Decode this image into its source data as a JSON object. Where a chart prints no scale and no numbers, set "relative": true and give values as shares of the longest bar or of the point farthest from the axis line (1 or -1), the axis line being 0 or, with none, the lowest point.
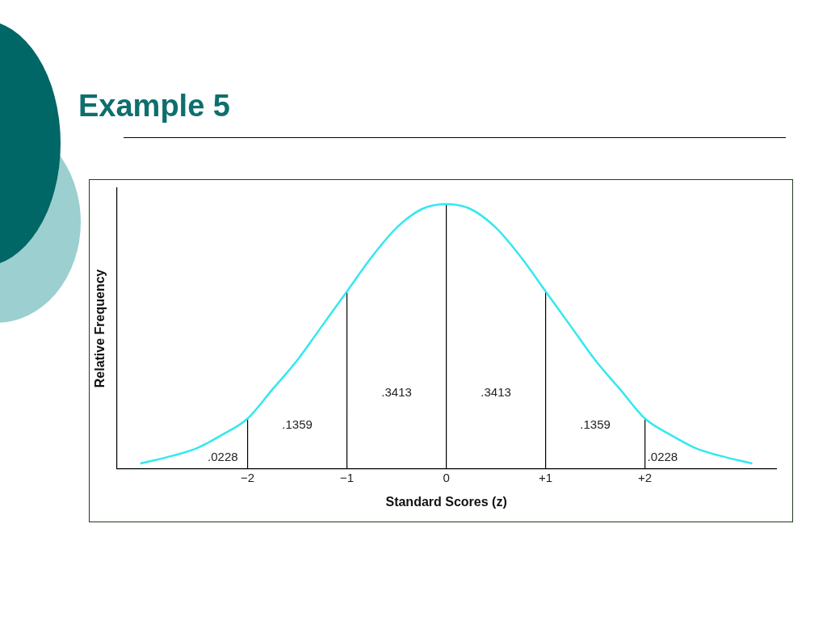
{
  "chart_data": {
    "type": "line",
    "title": "Example 5",
    "xlabel": "Standard Scores (z)",
    "ylabel": "Relative Frequency",
    "relative": true,
    "tick_labels": "x",
    "grid": false,
    "legend": false,
    "marker": "none",
    "line_style": "solid",
    "xlim": [
      -3.32,
      3.32
    ],
    "xticks": [
      {
        "value": -2,
        "label": "−2"
      },
      {
        "value": -1,
        "label": "−1"
      },
      0,
      {
        "value": 1,
        "label": "+1"
      },
      {
        "value": 2,
        "label": "+2"
      }
    ],
    "series": [
      {
        "type": "line",
        "color": "#33e8f0",
        "x": [
          -3.08,
          -2.75,
          -2.5,
          -2.25,
          -2,
          -1.75,
          -1.5,
          -1.25,
          -1,
          -0.75,
          -0.5,
          -0.25,
          0,
          0.25,
          0.5,
          0.75,
          1,
          1.25,
          1.5,
          1.75,
          2,
          2.25,
          2.5,
          2.75,
          3.08
        ],
        "values": [
          0.02,
          0.05,
          0.08,
          0.13,
          0.19,
          0.3,
          0.41,
          0.54,
          0.67,
          0.8,
          0.91,
          0.98,
          1,
          0.98,
          0.91,
          0.8,
          0.67,
          0.54,
          0.41,
          0.3,
          0.19,
          0.13,
          0.08,
          0.05,
          0.02
        ]
      },
      {
        "type": "line",
        "color": "#000000",
        "x": [
          -2,
          -2
        ],
        "values": [
          0,
          0.19
        ]
      },
      {
        "type": "line",
        "color": "#000000",
        "x": [
          -1,
          -1
        ],
        "values": [
          0,
          0.67
        ]
      },
      {
        "type": "line",
        "color": "#000000",
        "x": [
          0,
          0
        ],
        "values": [
          0,
          1
        ]
      },
      {
        "type": "line",
        "color": "#000000",
        "x": [
          1,
          1
        ],
        "values": [
          0,
          0.67
        ]
      },
      {
        "type": "line",
        "color": "#000000",
        "x": [
          2,
          2
        ],
        "values": [
          0,
          0.19
        ]
      }
    ],
    "annotations": [
      ".0228",
      ".1359",
      ".3413",
      ".3413",
      ".1359",
      ".0228"
    ]
  }
}
